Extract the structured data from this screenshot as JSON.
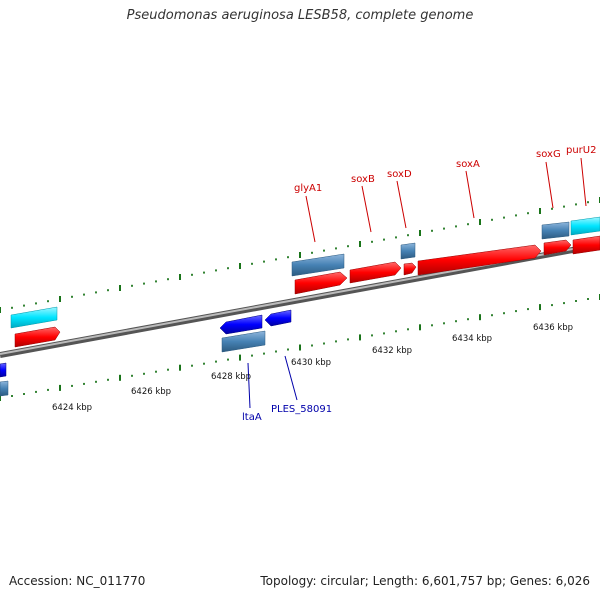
{
  "title": "Pseudomonas aeruginosa LESB58, complete genome",
  "footer": {
    "accession": "Accession: NC_011770",
    "summary": "Topology: circular; Length: 6,601,757 bp; Genes: 6,026"
  },
  "scale_labels": [
    "6424 kbp",
    "6426 kbp",
    "6428 kbp",
    "6430 kbp",
    "6432 kbp",
    "6434 kbp",
    "6436 kbp"
  ],
  "gene_labels_forward": [
    "glyA1",
    "soxB",
    "soxD",
    "soxA",
    "soxG",
    "purU2"
  ],
  "gene_labels_reverse": [
    "ltaA",
    "PLES_58091"
  ],
  "colors": {
    "forward_cds": "#ff0000",
    "reverse_cds": "#0000ff",
    "forward_gene": "#00e5ff",
    "gene_outline": "#4682b4",
    "backbone": "#888888",
    "ticks": "#006400",
    "label_forward": "#cc0000",
    "label_reverse": "#0000aa"
  }
}
